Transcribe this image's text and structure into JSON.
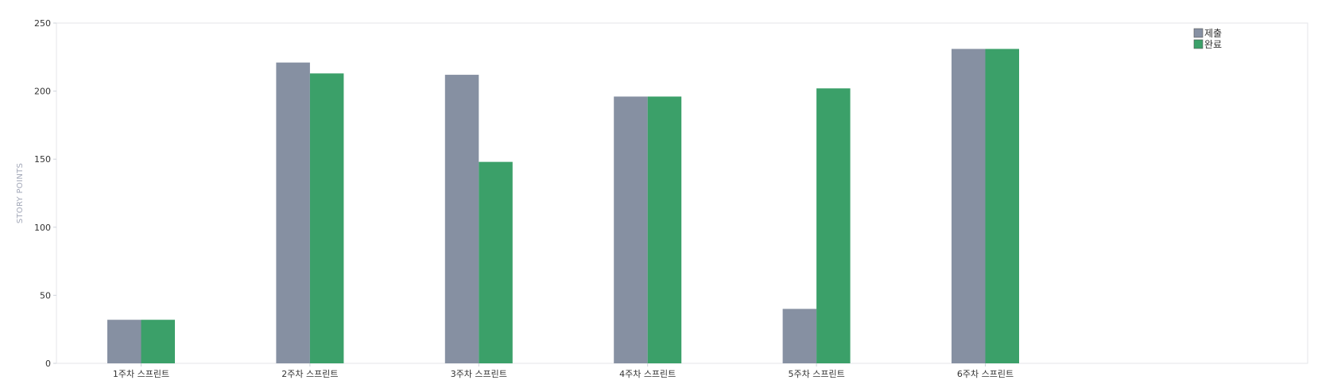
{
  "chart_data": {
    "type": "bar",
    "title": "",
    "xlabel": "",
    "ylabel": "STORY POINTS",
    "ylim": [
      0,
      250
    ],
    "yticks": [
      0,
      50,
      100,
      150,
      200,
      250
    ],
    "grid": false,
    "legend_position": "top-right",
    "categories": [
      "1주차 스프린트",
      "2주차 스프린트",
      "3주차 스프린트",
      "4주차 스프린트",
      "5주차 스프린트",
      "6주차 스프린트"
    ],
    "series": [
      {
        "name": "제출",
        "color": "#8690a2",
        "values": [
          32,
          221,
          212,
          196,
          40,
          231
        ]
      },
      {
        "name": "완료",
        "color": "#3ba069",
        "values": [
          32,
          213,
          148,
          196,
          202,
          231
        ]
      }
    ]
  }
}
